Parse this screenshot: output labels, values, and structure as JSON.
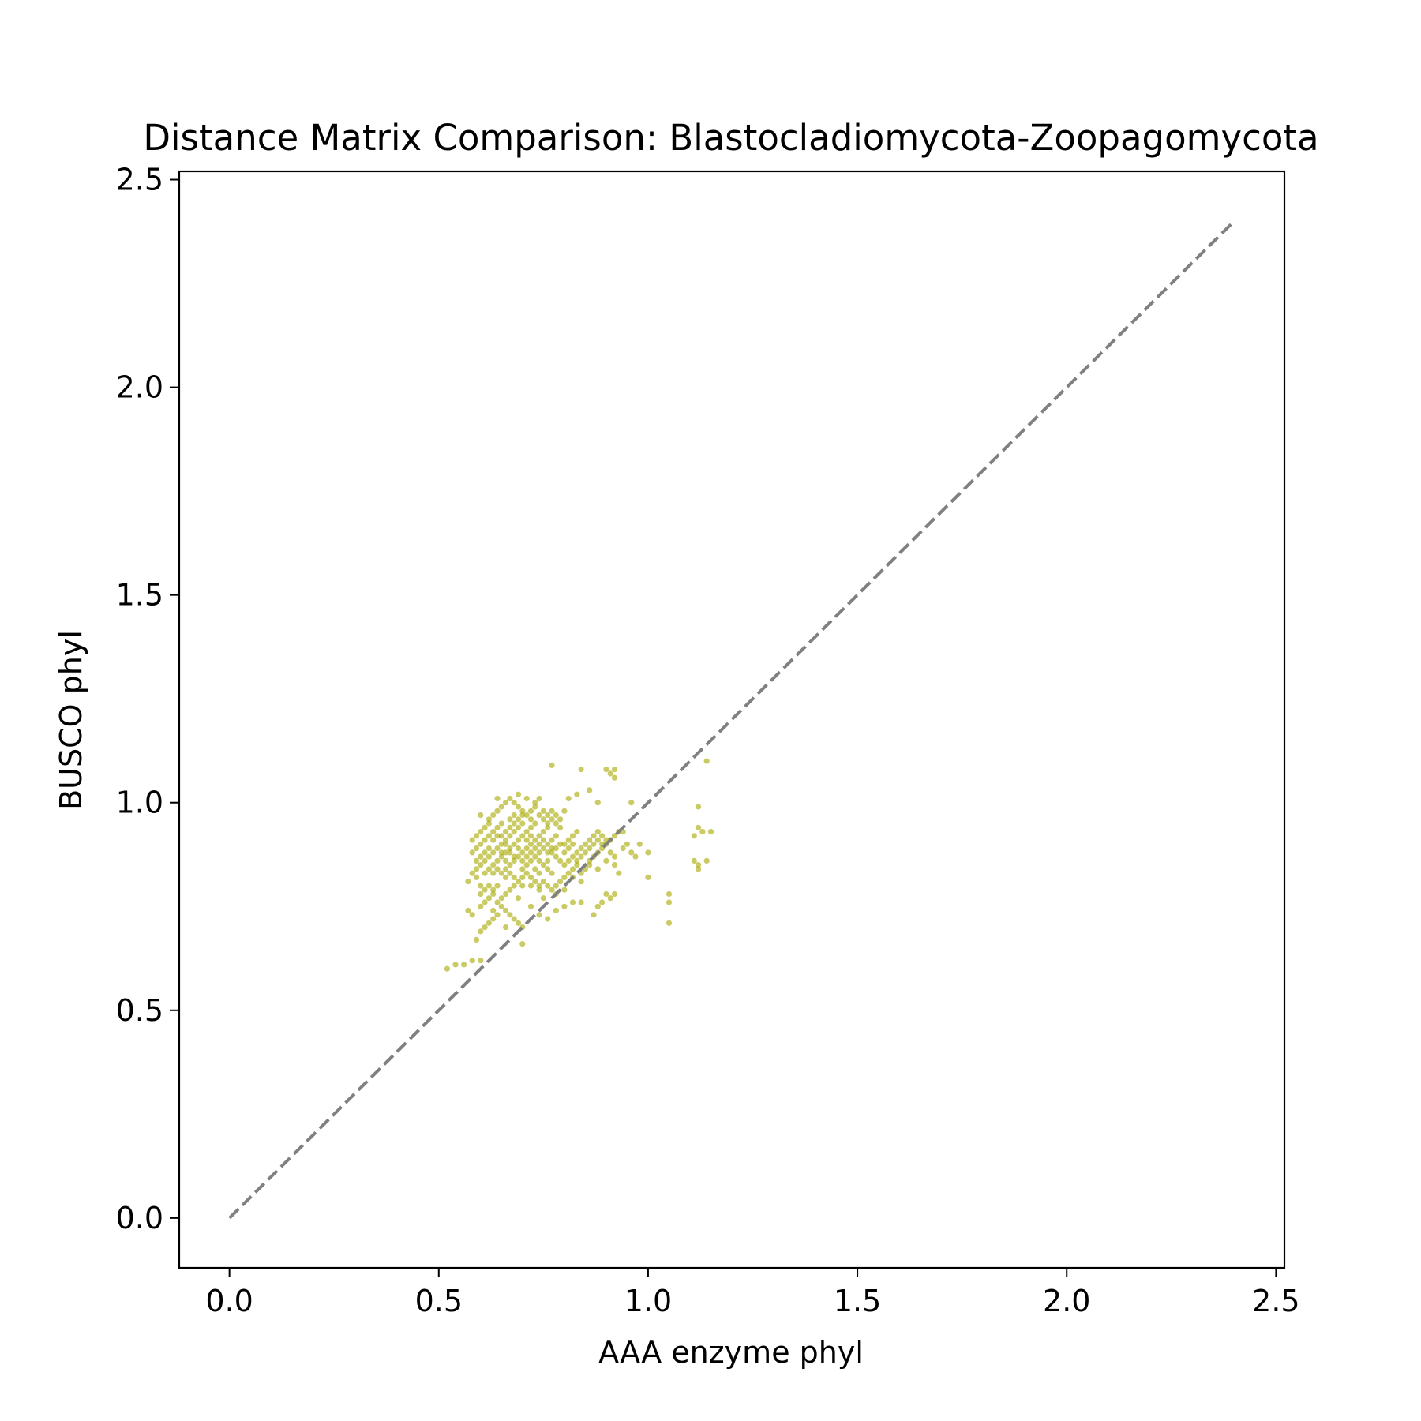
{
  "chart_data": {
    "type": "scatter",
    "title": "Distance Matrix Comparison: Blastocladiomycota-Zoopagomycota",
    "xlabel": "AAA enzyme phyl",
    "ylabel": "BUSCO phyl",
    "xlim": [
      -0.12,
      2.52
    ],
    "ylim": [
      -0.12,
      2.52
    ],
    "xticks": [
      "0.0",
      "0.5",
      "1.0",
      "1.5",
      "2.0",
      "2.5"
    ],
    "yticks": [
      "0.0",
      "0.5",
      "1.0",
      "1.5",
      "2.0",
      "2.5"
    ],
    "xtick_values": [
      0,
      0.5,
      1.0,
      1.5,
      2.0,
      2.5
    ],
    "ytick_values": [
      0,
      0.5,
      1.0,
      1.5,
      2.0,
      2.5
    ],
    "grid": false,
    "legend": "none",
    "point_color": "#a8a800",
    "reference_line": {
      "x": [
        0,
        2.4
      ],
      "y": [
        0,
        2.4
      ],
      "color": "#808080",
      "style": "dashed"
    },
    "series": [
      {
        "points": [
          [
            0.52,
            0.6
          ],
          [
            0.54,
            0.61
          ],
          [
            0.56,
            0.61
          ],
          [
            0.58,
            0.62
          ],
          [
            0.6,
            0.62
          ],
          [
            0.59,
            0.67
          ],
          [
            0.6,
            0.69
          ],
          [
            0.61,
            0.7
          ],
          [
            0.62,
            0.71
          ],
          [
            0.63,
            0.72
          ],
          [
            0.58,
            0.73
          ],
          [
            0.57,
            0.74
          ],
          [
            0.6,
            0.75
          ],
          [
            0.61,
            0.76
          ],
          [
            0.62,
            0.77
          ],
          [
            0.63,
            0.78
          ],
          [
            0.64,
            0.76
          ],
          [
            0.65,
            0.77
          ],
          [
            0.66,
            0.78
          ],
          [
            0.67,
            0.79
          ],
          [
            0.62,
            0.8
          ],
          [
            0.63,
            0.79
          ],
          [
            0.64,
            0.8
          ],
          [
            0.65,
            0.75
          ],
          [
            0.66,
            0.74
          ],
          [
            0.67,
            0.73
          ],
          [
            0.68,
            0.72
          ],
          [
            0.69,
            0.71
          ],
          [
            0.7,
            0.7
          ],
          [
            0.7,
            0.66
          ],
          [
            0.69,
            0.77
          ],
          [
            0.6,
            0.78
          ],
          [
            0.61,
            0.79
          ],
          [
            0.63,
            0.74
          ],
          [
            0.64,
            0.73
          ],
          [
            0.66,
            0.7
          ],
          [
            0.72,
            0.75
          ],
          [
            0.74,
            0.73
          ],
          [
            0.76,
            0.72
          ],
          [
            0.78,
            0.74
          ],
          [
            0.8,
            0.75
          ],
          [
            0.82,
            0.76
          ],
          [
            0.78,
            0.78
          ],
          [
            0.8,
            0.79
          ],
          [
            0.75,
            0.77
          ],
          [
            0.72,
            0.8
          ],
          [
            0.7,
            0.8
          ],
          [
            0.74,
            0.79
          ],
          [
            0.59,
            0.84
          ],
          [
            0.6,
            0.85
          ],
          [
            0.61,
            0.86
          ],
          [
            0.62,
            0.87
          ],
          [
            0.58,
            0.88
          ],
          [
            0.59,
            0.89
          ],
          [
            0.6,
            0.9
          ],
          [
            0.61,
            0.91
          ],
          [
            0.62,
            0.92
          ],
          [
            0.63,
            0.93
          ],
          [
            0.64,
            0.94
          ],
          [
            0.65,
            0.95
          ],
          [
            0.63,
            0.88
          ],
          [
            0.64,
            0.89
          ],
          [
            0.65,
            0.9
          ],
          [
            0.66,
            0.91
          ],
          [
            0.67,
            0.92
          ],
          [
            0.68,
            0.93
          ],
          [
            0.69,
            0.94
          ],
          [
            0.7,
            0.95
          ],
          [
            0.64,
            0.86
          ],
          [
            0.65,
            0.87
          ],
          [
            0.66,
            0.88
          ],
          [
            0.67,
            0.89
          ],
          [
            0.68,
            0.9
          ],
          [
            0.69,
            0.91
          ],
          [
            0.7,
            0.92
          ],
          [
            0.71,
            0.93
          ],
          [
            0.72,
            0.94
          ],
          [
            0.73,
            0.95
          ],
          [
            0.62,
            0.96
          ],
          [
            0.63,
            0.97
          ],
          [
            0.64,
            0.98
          ],
          [
            0.65,
            0.99
          ],
          [
            0.66,
            1.0
          ],
          [
            0.67,
            1.01
          ],
          [
            0.68,
            1.0
          ],
          [
            0.69,
            0.99
          ],
          [
            0.7,
            0.98
          ],
          [
            0.71,
            0.97
          ],
          [
            0.72,
            0.96
          ],
          [
            0.73,
            1.0
          ],
          [
            0.74,
            1.01
          ],
          [
            0.75,
            0.98
          ],
          [
            0.76,
            0.97
          ],
          [
            0.66,
            0.84
          ],
          [
            0.67,
            0.85
          ],
          [
            0.68,
            0.86
          ],
          [
            0.69,
            0.87
          ],
          [
            0.7,
            0.88
          ],
          [
            0.71,
            0.89
          ],
          [
            0.72,
            0.9
          ],
          [
            0.73,
            0.91
          ],
          [
            0.74,
            0.92
          ],
          [
            0.75,
            0.93
          ],
          [
            0.76,
            0.94
          ],
          [
            0.72,
            0.86
          ],
          [
            0.73,
            0.87
          ],
          [
            0.74,
            0.88
          ],
          [
            0.75,
            0.89
          ],
          [
            0.76,
            0.9
          ],
          [
            0.77,
            0.91
          ],
          [
            0.78,
            0.92
          ],
          [
            0.77,
            0.88
          ],
          [
            0.78,
            0.87
          ],
          [
            0.79,
            0.86
          ],
          [
            0.8,
            0.85
          ],
          [
            0.81,
            0.86
          ],
          [
            0.82,
            0.87
          ],
          [
            0.83,
            0.88
          ],
          [
            0.84,
            0.89
          ],
          [
            0.85,
            0.9
          ],
          [
            0.8,
            0.9
          ],
          [
            0.81,
            0.91
          ],
          [
            0.82,
            0.92
          ],
          [
            0.83,
            0.93
          ],
          [
            0.79,
            0.94
          ],
          [
            0.78,
            0.95
          ],
          [
            0.77,
            0.96
          ],
          [
            0.6,
            0.93
          ],
          [
            0.61,
            0.94
          ],
          [
            0.62,
            0.95
          ],
          [
            0.6,
            0.97
          ],
          [
            0.64,
            1.01
          ],
          [
            0.67,
            0.96
          ],
          [
            0.68,
            0.97
          ],
          [
            0.69,
            1.02
          ],
          [
            0.71,
            1.01
          ],
          [
            0.66,
            0.82
          ],
          [
            0.67,
            0.83
          ],
          [
            0.68,
            0.82
          ],
          [
            0.7,
            0.84
          ],
          [
            0.71,
            0.85
          ],
          [
            0.73,
            0.84
          ],
          [
            0.74,
            0.83
          ],
          [
            0.75,
            0.85
          ],
          [
            0.76,
            0.84
          ],
          [
            0.77,
            0.83
          ],
          [
            0.86,
            0.86
          ],
          [
            0.87,
            0.87
          ],
          [
            0.88,
            0.88
          ],
          [
            0.89,
            0.89
          ],
          [
            0.9,
            0.9
          ],
          [
            0.91,
            0.91
          ],
          [
            0.92,
            0.92
          ],
          [
            0.93,
            0.93
          ],
          [
            0.86,
            0.91
          ],
          [
            0.87,
            0.92
          ],
          [
            0.88,
            0.93
          ],
          [
            0.89,
            0.92
          ],
          [
            0.9,
            0.91
          ],
          [
            0.91,
            0.88
          ],
          [
            0.92,
            0.87
          ],
          [
            0.94,
            0.89
          ],
          [
            0.95,
            0.9
          ],
          [
            0.96,
            0.88
          ],
          [
            0.97,
            0.87
          ],
          [
            0.98,
            0.9
          ],
          [
            1.0,
            0.88
          ],
          [
            0.86,
            0.85
          ],
          [
            0.88,
            0.84
          ],
          [
            0.9,
            0.86
          ],
          [
            0.92,
            0.85
          ],
          [
            0.93,
            0.83
          ],
          [
            0.82,
            0.82
          ],
          [
            0.84,
            0.81
          ],
          [
            0.9,
            0.78
          ],
          [
            0.91,
            0.77
          ],
          [
            0.92,
            0.78
          ],
          [
            0.89,
            0.76
          ],
          [
            0.88,
            0.75
          ],
          [
            0.84,
            0.76
          ],
          [
            0.87,
            0.73
          ],
          [
            0.8,
            0.98
          ],
          [
            0.81,
            1.01
          ],
          [
            0.83,
            1.02
          ],
          [
            0.84,
            1.08
          ],
          [
            0.77,
            1.09
          ],
          [
            0.9,
            1.08
          ],
          [
            0.91,
            1.07
          ],
          [
            0.92,
            1.06
          ],
          [
            0.92,
            1.08
          ],
          [
            0.86,
            1.03
          ],
          [
            0.88,
            1.0
          ],
          [
            0.96,
            1.0
          ],
          [
            0.94,
            0.93
          ],
          [
            1.0,
            0.82
          ],
          [
            1.05,
            0.78
          ],
          [
            1.05,
            0.76
          ],
          [
            1.05,
            0.71
          ],
          [
            1.11,
            0.86
          ],
          [
            1.12,
            0.85
          ],
          [
            1.12,
            0.84
          ],
          [
            1.11,
            0.92
          ],
          [
            1.12,
            0.94
          ],
          [
            1.13,
            0.93
          ],
          [
            1.15,
            0.93
          ],
          [
            1.14,
            0.86
          ],
          [
            1.12,
            0.99
          ],
          [
            1.14,
            1.1
          ],
          [
            0.57,
            0.81
          ],
          [
            0.58,
            0.83
          ],
          [
            0.59,
            0.82
          ],
          [
            0.61,
            0.83
          ],
          [
            0.62,
            0.84
          ],
          [
            0.6,
            0.8
          ],
          [
            0.65,
            0.83
          ],
          [
            0.63,
            0.85
          ],
          [
            0.66,
            0.93
          ],
          [
            0.67,
            0.94
          ],
          [
            0.68,
            0.95
          ],
          [
            0.69,
            0.96
          ],
          [
            0.7,
            0.97
          ],
          [
            0.71,
            0.91
          ],
          [
            0.72,
            0.92
          ],
          [
            0.73,
            0.89
          ],
          [
            0.74,
            0.9
          ],
          [
            0.75,
            0.91
          ],
          [
            0.76,
            0.88
          ],
          [
            0.77,
            0.89
          ],
          [
            0.65,
            0.92
          ],
          [
            0.66,
            0.9
          ],
          [
            0.67,
            0.88
          ],
          [
            0.68,
            0.87
          ],
          [
            0.69,
            0.89
          ],
          [
            0.7,
            0.86
          ],
          [
            0.71,
            0.87
          ],
          [
            0.72,
            0.88
          ],
          [
            0.63,
            0.91
          ],
          [
            0.64,
            0.92
          ],
          [
            0.65,
            0.88
          ],
          [
            0.66,
            0.86
          ],
          [
            0.74,
            0.86
          ],
          [
            0.76,
            0.86
          ],
          [
            0.78,
            0.89
          ],
          [
            0.79,
            0.9
          ],
          [
            0.8,
            0.88
          ],
          [
            0.81,
            0.89
          ],
          [
            0.82,
            0.9
          ],
          [
            0.83,
            0.86
          ],
          [
            0.84,
            0.87
          ],
          [
            0.85,
            0.88
          ],
          [
            0.86,
            0.89
          ],
          [
            0.87,
            0.9
          ],
          [
            0.88,
            0.91
          ],
          [
            0.89,
            0.9
          ],
          [
            0.62,
            0.89
          ],
          [
            0.61,
            0.88
          ],
          [
            0.6,
            0.87
          ],
          [
            0.59,
            0.86
          ],
          [
            0.58,
            0.91
          ],
          [
            0.59,
            0.92
          ],
          [
            0.63,
            0.83
          ],
          [
            0.64,
            0.84
          ],
          [
            0.72,
            0.98
          ],
          [
            0.73,
            0.99
          ],
          [
            0.74,
            0.97
          ],
          [
            0.75,
            0.96
          ],
          [
            0.76,
            0.95
          ],
          [
            0.77,
            0.98
          ],
          [
            0.78,
            0.97
          ],
          [
            0.79,
            0.96
          ],
          [
            0.68,
            0.8
          ],
          [
            0.69,
            0.81
          ],
          [
            0.7,
            0.82
          ],
          [
            0.71,
            0.83
          ],
          [
            0.72,
            0.82
          ],
          [
            0.73,
            0.81
          ],
          [
            0.74,
            0.8
          ],
          [
            0.75,
            0.81
          ],
          [
            0.76,
            0.8
          ],
          [
            0.77,
            0.79
          ],
          [
            0.78,
            0.8
          ],
          [
            0.79,
            0.81
          ],
          [
            0.8,
            0.82
          ],
          [
            0.81,
            0.83
          ],
          [
            0.82,
            0.84
          ],
          [
            0.83,
            0.85
          ],
          [
            0.84,
            0.83
          ],
          [
            0.85,
            0.84
          ]
        ]
      }
    ]
  }
}
